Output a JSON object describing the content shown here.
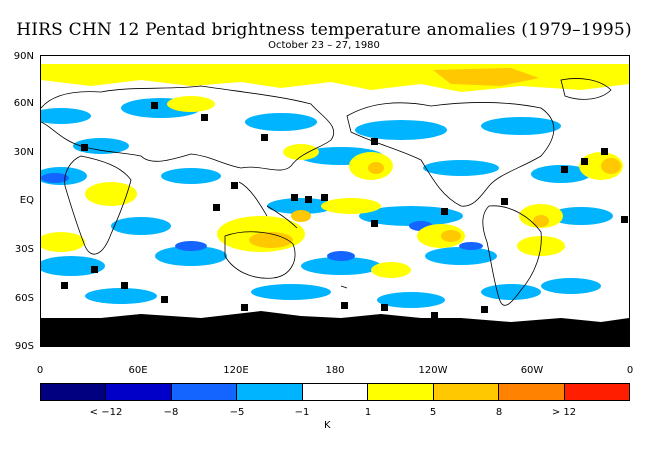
{
  "title": "HIRS CHN 12 Pentad brightness temperature anomalies (1979–1995)",
  "subtitle": "October 23 – 27, 1980",
  "lat_labels": [
    "90N",
    "60N",
    "30N",
    "EQ",
    "30S",
    "60S",
    "90S"
  ],
  "lon_labels": [
    "0",
    "60E",
    "120E",
    "180",
    "120W",
    "60W",
    "0"
  ],
  "colorbar": {
    "colors": [
      "#000080",
      "#0000c8",
      "#1464ff",
      "#00b4ff",
      "#ffffff",
      "#ffff00",
      "#ffc800",
      "#ff8200",
      "#ff1e00"
    ],
    "labels": [
      "< −12",
      "−8",
      "−5",
      "−1",
      "1",
      "5",
      "8",
      "> 12"
    ],
    "unit": "K"
  },
  "colors": {
    "light_blue": "#00b4ff",
    "mid_blue": "#1464ff",
    "yellow": "#ffff00",
    "orange": "#ffc800",
    "missing": "#000000"
  }
}
